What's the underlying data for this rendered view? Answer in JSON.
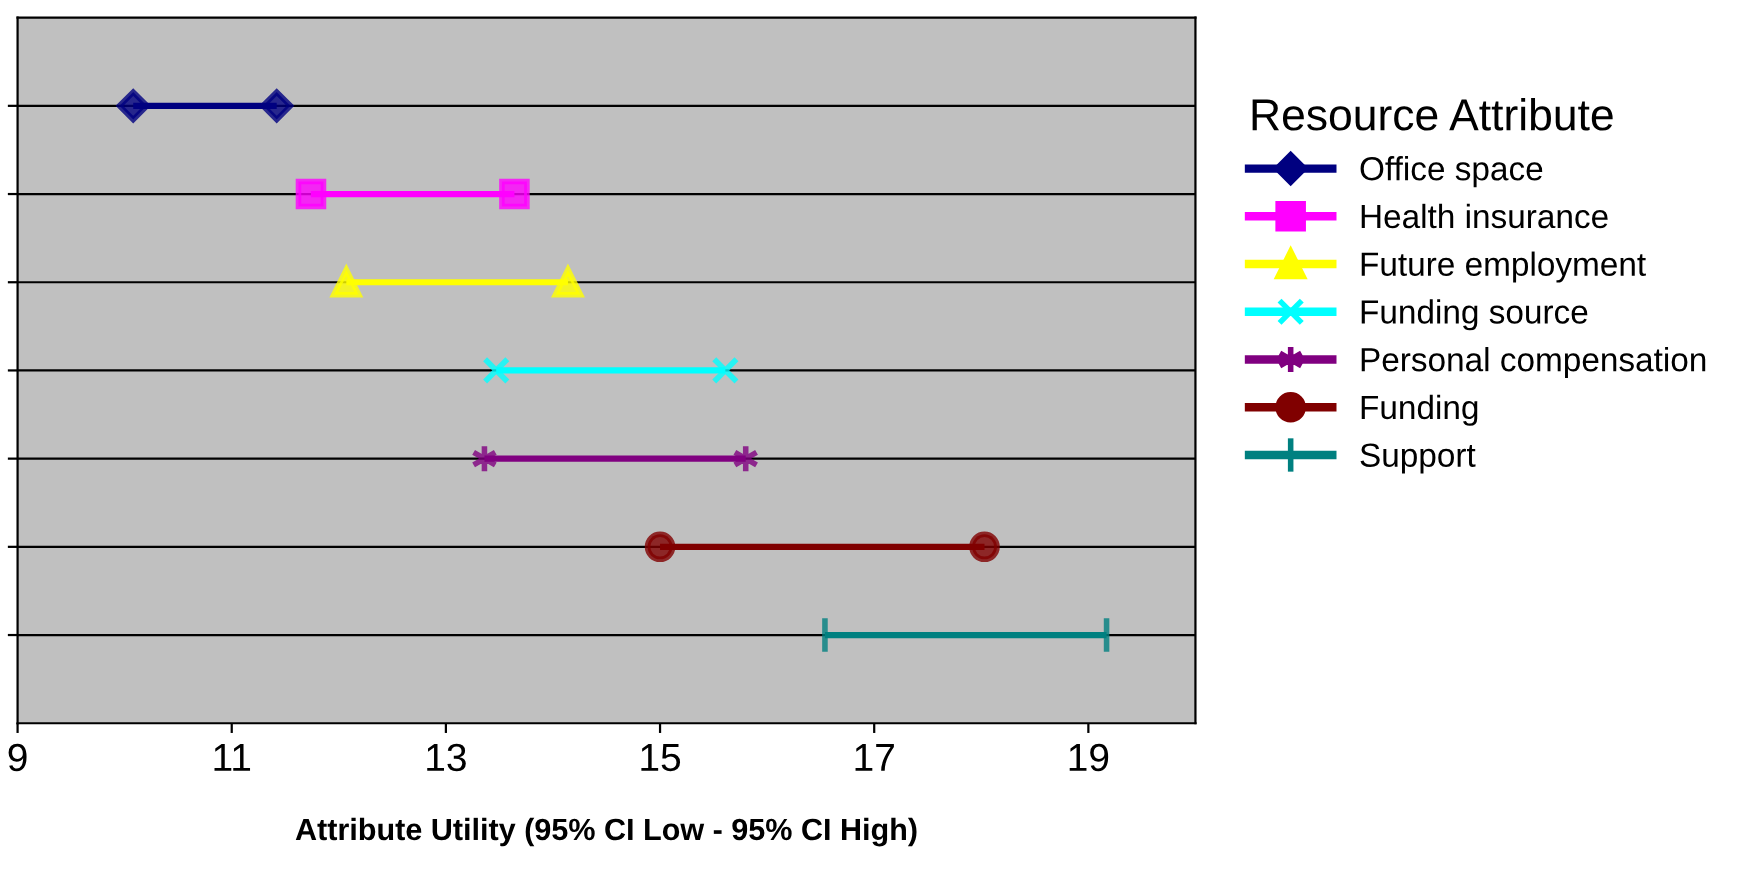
{
  "chart_data": {
    "type": "bar",
    "orientation": "horizontal",
    "xlabel": "Attribute Utility (95% CI Low - 95% CI High)",
    "legend_title": "Resource Attribute",
    "legend": "right",
    "grid": "y",
    "xlim": [
      9,
      20
    ],
    "xticks": [
      9,
      11,
      13,
      15,
      17,
      19
    ],
    "categories": [
      null,
      null,
      null,
      null,
      null,
      null,
      null
    ],
    "series": [
      {
        "name": "Office space",
        "color": "#000080",
        "marker": "diamond",
        "base": [
          10.08,
          null,
          null,
          null,
          null,
          null,
          null
        ],
        "values": [
          1.34,
          null,
          null,
          null,
          null,
          null,
          null
        ]
      },
      {
        "name": "Health insurance",
        "color": "#ff00ff",
        "marker": "square",
        "base": [
          null,
          11.74,
          null,
          null,
          null,
          null,
          null
        ],
        "values": [
          null,
          1.9,
          null,
          null,
          null,
          null,
          null
        ]
      },
      {
        "name": "Future employment",
        "color": "#ffff00",
        "marker": "triangle",
        "base": [
          null,
          null,
          12.07,
          null,
          null,
          null,
          null
        ],
        "values": [
          null,
          null,
          2.07,
          null,
          null,
          null,
          null
        ]
      },
      {
        "name": "Funding source",
        "color": "#00ffff",
        "marker": "cross",
        "base": [
          null,
          null,
          null,
          13.47,
          null,
          null,
          null
        ],
        "values": [
          null,
          null,
          null,
          2.14,
          null,
          null,
          null
        ]
      },
      {
        "name": "Personal compensation",
        "color": "#800080",
        "marker": "star",
        "base": [
          null,
          null,
          null,
          null,
          13.36,
          null,
          null
        ],
        "values": [
          null,
          null,
          null,
          null,
          2.44,
          null,
          null
        ]
      },
      {
        "name": "Funding",
        "color": "#800000",
        "marker": "circle",
        "base": [
          null,
          null,
          null,
          null,
          null,
          15.0,
          null
        ],
        "values": [
          null,
          null,
          null,
          null,
          null,
          3.03,
          null
        ]
      },
      {
        "name": "Support",
        "color": "#008080",
        "marker": "plus",
        "base": [
          null,
          null,
          null,
          null,
          null,
          null,
          16.54
        ],
        "values": [
          null,
          null,
          null,
          null,
          null,
          null,
          2.63
        ]
      }
    ]
  }
}
